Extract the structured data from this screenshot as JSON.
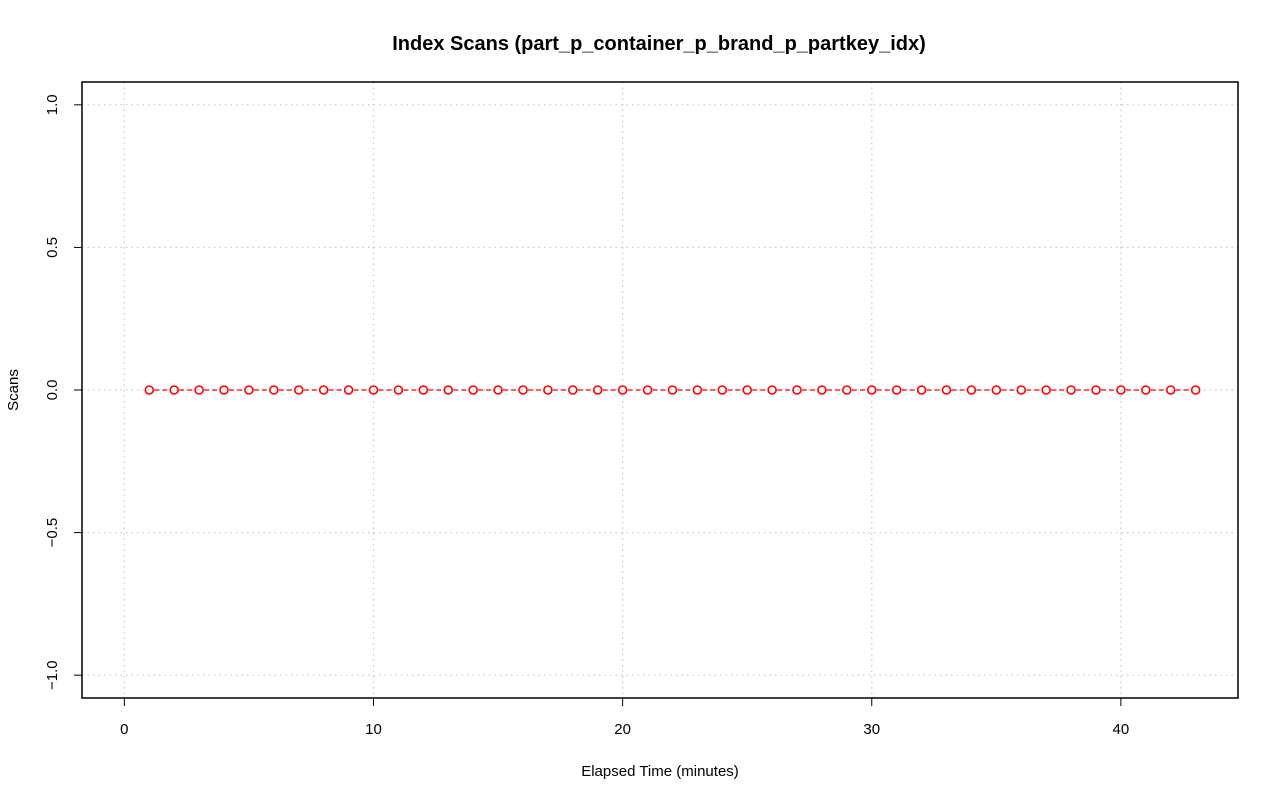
{
  "chart_data": {
    "type": "line",
    "title": "Index Scans (part_p_container_p_brand_p_partkey_idx)",
    "xlabel": "Elapsed Time (minutes)",
    "ylabel": "Scans",
    "xlim": [
      -1.7,
      44.7
    ],
    "ylim": [
      -1.08,
      1.08
    ],
    "x_ticks": [
      0,
      10,
      20,
      30,
      40
    ],
    "y_ticks": [
      -1.0,
      -0.5,
      0.0,
      0.5,
      1.0
    ],
    "x_tick_labels": [
      "0",
      "10",
      "20",
      "30",
      "40"
    ],
    "y_tick_labels": [
      "−1.0",
      "−0.5",
      "0.0",
      "0.5",
      "1.0"
    ],
    "grid": true,
    "series": [
      {
        "color": "#ff0000",
        "marker": "open-circle",
        "line_style": "dashed",
        "x": [
          1,
          2,
          3,
          4,
          5,
          6,
          7,
          8,
          9,
          10,
          11,
          12,
          13,
          14,
          15,
          16,
          17,
          18,
          19,
          20,
          21,
          22,
          23,
          24,
          25,
          26,
          27,
          28,
          29,
          30,
          31,
          32,
          33,
          34,
          35,
          36,
          37,
          38,
          39,
          40,
          41,
          42,
          43
        ],
        "y": [
          0,
          0,
          0,
          0,
          0,
          0,
          0,
          0,
          0,
          0,
          0,
          0,
          0,
          0,
          0,
          0,
          0,
          0,
          0,
          0,
          0,
          0,
          0,
          0,
          0,
          0,
          0,
          0,
          0,
          0,
          0,
          0,
          0,
          0,
          0,
          0,
          0,
          0,
          0,
          0,
          0,
          0,
          0
        ]
      }
    ]
  }
}
